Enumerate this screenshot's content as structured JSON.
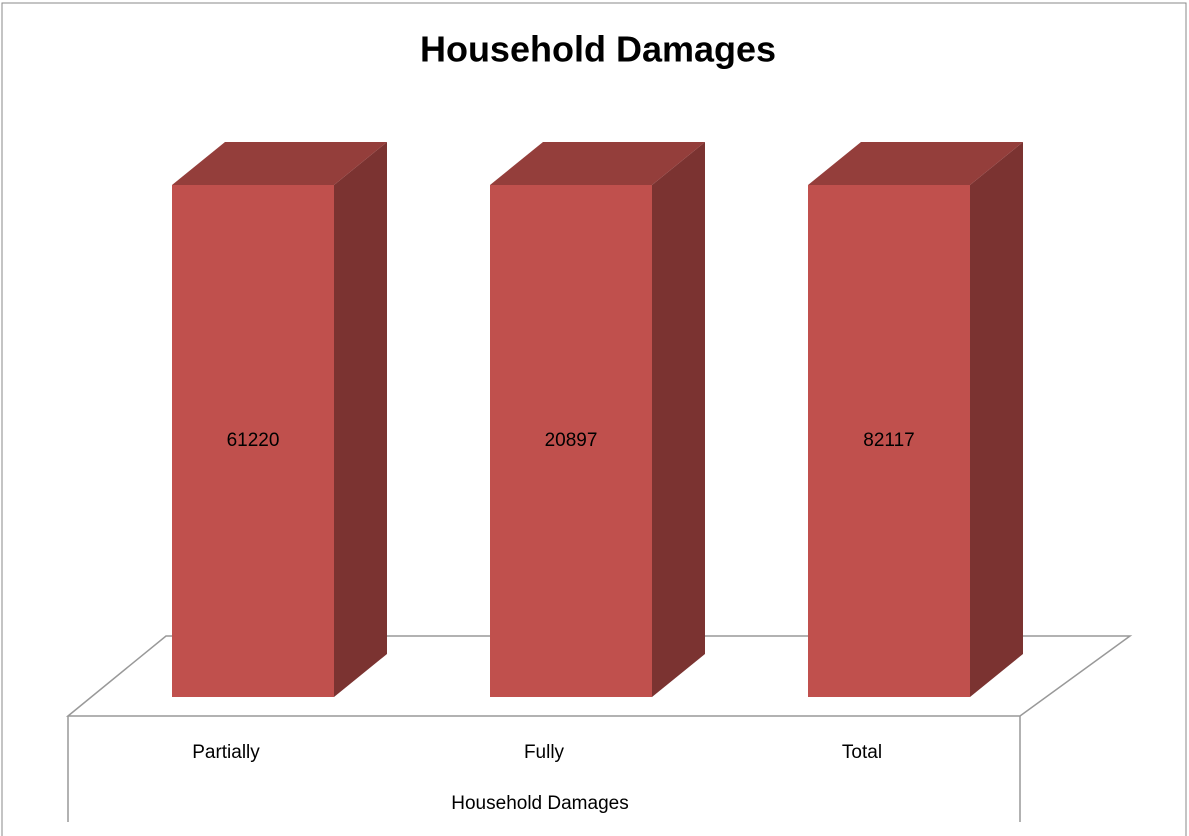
{
  "chart_data": {
    "type": "bar",
    "stacking": "percent",
    "title": "Household Damages",
    "categories": [
      "Partially",
      "Fully",
      "Total"
    ],
    "series": [
      {
        "name": "Household Damages",
        "color": "#c0504d",
        "values": [
          61220,
          20897,
          82117
        ]
      }
    ],
    "x_label": "Household Damages"
  }
}
